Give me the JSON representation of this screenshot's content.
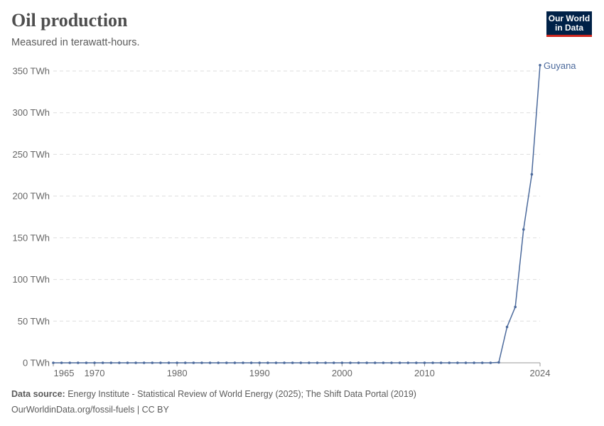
{
  "header": {
    "title": "Oil production",
    "subtitle": "Measured in terawatt-hours."
  },
  "logo": {
    "line1": "Our World",
    "line2": "in Data",
    "bg": "#002147",
    "accent": "#ce261e"
  },
  "footer": {
    "source_label": "Data source:",
    "source_text": "Energy Institute - Statistical Review of World Energy (2025); The Shift Data Portal (2019)",
    "url": "OurWorldinData.org/fossil-fuels | CC BY"
  },
  "chart_data": {
    "type": "line",
    "title": "Oil production",
    "ylabel": "",
    "xlabel": "",
    "ylim": [
      0,
      350
    ],
    "xlim": [
      1965,
      2024
    ],
    "grid": "horizontal dashed",
    "y_ticks": [
      "0 TWh",
      "50 TWh",
      "100 TWh",
      "150 TWh",
      "200 TWh",
      "250 TWh",
      "300 TWh",
      "350 TWh"
    ],
    "x_ticks": [
      "1965",
      "1970",
      "1980",
      "1990",
      "2000",
      "2010",
      "2024"
    ],
    "series": [
      {
        "name": "Guyana",
        "color": "#4c6a9c",
        "x": [
          1965,
          1966,
          1967,
          1968,
          1969,
          1970,
          1971,
          1972,
          1973,
          1974,
          1975,
          1976,
          1977,
          1978,
          1979,
          1980,
          1981,
          1982,
          1983,
          1984,
          1985,
          1986,
          1987,
          1988,
          1989,
          1990,
          1991,
          1992,
          1993,
          1994,
          1995,
          1996,
          1997,
          1998,
          1999,
          2000,
          2001,
          2002,
          2003,
          2004,
          2005,
          2006,
          2007,
          2008,
          2009,
          2010,
          2011,
          2012,
          2013,
          2014,
          2015,
          2016,
          2017,
          2018,
          2019,
          2020,
          2021,
          2022,
          2023,
          2024
        ],
        "values": [
          0,
          0,
          0,
          0,
          0,
          0,
          0,
          0,
          0,
          0,
          0,
          0,
          0,
          0,
          0,
          0,
          0,
          0,
          0,
          0,
          0,
          0,
          0,
          0,
          0,
          0,
          0,
          0,
          0,
          0,
          0,
          0,
          0,
          0,
          0,
          0,
          0,
          0,
          0,
          0,
          0,
          0,
          0,
          0,
          0,
          0,
          0,
          0,
          0,
          0,
          0,
          0,
          0,
          0,
          0.5,
          43,
          67,
          160,
          226,
          357
        ]
      }
    ]
  }
}
